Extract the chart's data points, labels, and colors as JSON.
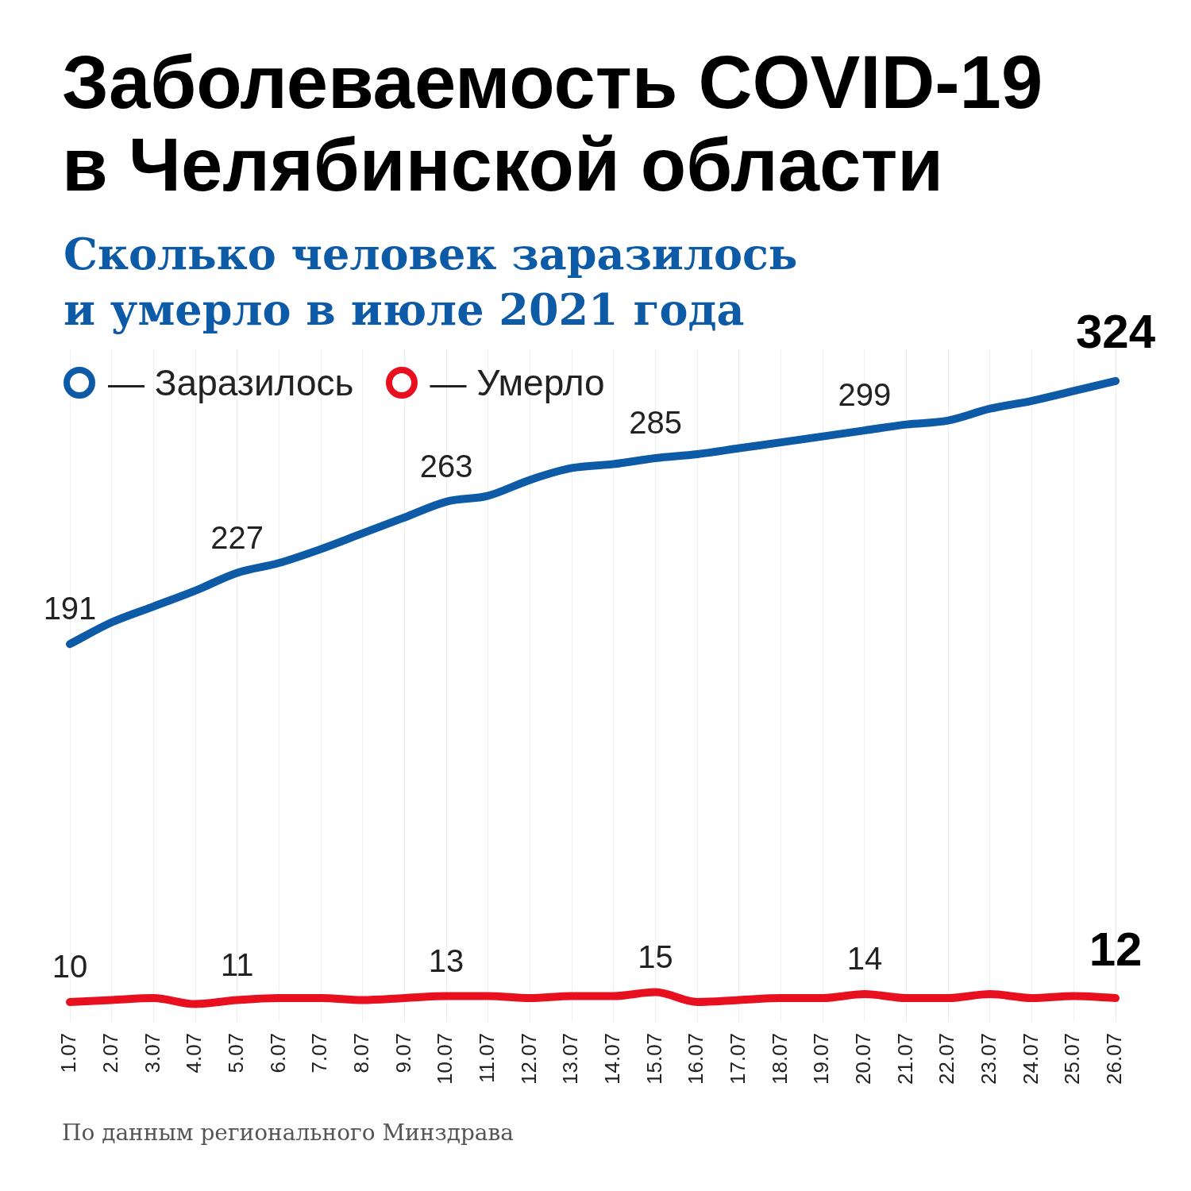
{
  "chart_data": {
    "type": "line",
    "title": "Заболеваемость COVID-19\nв Челябинской области",
    "subtitle": "Сколько человек заразилось\nи умерло в июле 2021 года",
    "categories": [
      "1.07",
      "2.07",
      "3.07",
      "4.07",
      "5.07",
      "6.07",
      "7.07",
      "8.07",
      "9.07",
      "10.07",
      "11.07",
      "12.07",
      "13.07",
      "14.07",
      "15.07",
      "16.07",
      "17.07",
      "18.07",
      "19.07",
      "20.07",
      "21.07",
      "22.07",
      "23.07",
      "24.07",
      "25.07",
      "26.07"
    ],
    "series": [
      {
        "name": "— Заразилось",
        "color": "#0d5aa7",
        "values": [
          191,
          202,
          210,
          218,
          227,
          232,
          239,
          247,
          255,
          263,
          266,
          274,
          280,
          282,
          285,
          287,
          290,
          293,
          296,
          299,
          302,
          304,
          310,
          314,
          319,
          324
        ],
        "value_labels": [
          "191",
          null,
          null,
          null,
          "227",
          null,
          null,
          null,
          null,
          "263",
          null,
          null,
          null,
          null,
          "285",
          null,
          null,
          null,
          null,
          "299",
          null,
          null,
          null,
          null,
          null,
          "324"
        ]
      },
      {
        "name": "— Умерло",
        "color": "#e8101e",
        "values": [
          10,
          11,
          12,
          9,
          11,
          12,
          12,
          11,
          12,
          13,
          13,
          12,
          13,
          13,
          15,
          10,
          11,
          12,
          12,
          14,
          12,
          12,
          14,
          12,
          13,
          12
        ],
        "value_labels": [
          "10",
          null,
          null,
          null,
          "11",
          null,
          null,
          null,
          null,
          "13",
          null,
          null,
          null,
          null,
          "15",
          null,
          null,
          null,
          null,
          "14",
          null,
          null,
          null,
          null,
          null,
          "12"
        ]
      }
    ],
    "ylim": [
      0,
      340
    ],
    "tick_labels": "x",
    "grid": "x",
    "legend": "top left",
    "line_style": "solid",
    "annotations": [
      "По данным регионального Минздрава"
    ]
  }
}
